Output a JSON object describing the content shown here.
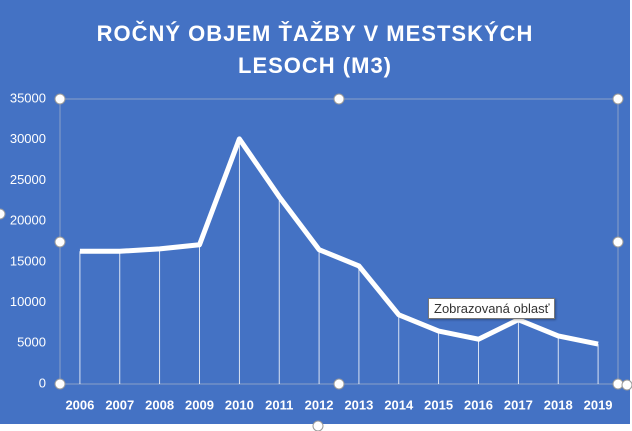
{
  "chart_data": {
    "type": "line",
    "title": "ROČNÝ OBJEM ŤAŽBY V MESTSKÝCH LESOCH (M3)",
    "categories": [
      "2006",
      "2007",
      "2008",
      "2009",
      "2010",
      "2011",
      "2012",
      "2013",
      "2014",
      "2015",
      "2016",
      "2017",
      "2018",
      "2019"
    ],
    "values": [
      16300,
      16300,
      16600,
      17100,
      30100,
      23000,
      16500,
      14500,
      8500,
      6500,
      5500,
      7900,
      5900,
      4900
    ],
    "color": "#ffffff",
    "drop_lines": true,
    "ylim": [
      0,
      35000
    ],
    "yticks": [
      0,
      5000,
      10000,
      15000,
      20000,
      25000,
      30000,
      35000
    ],
    "tooltip": "Zobrazovaná oblasť"
  }
}
